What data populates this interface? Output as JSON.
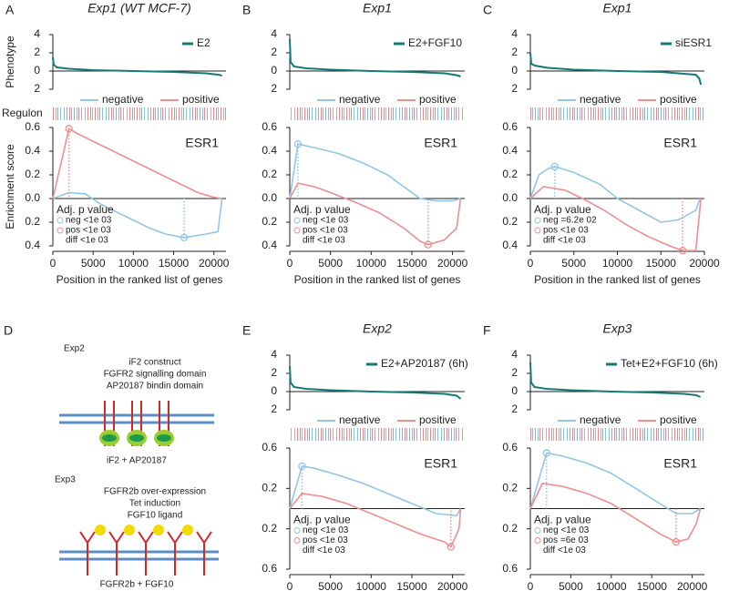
{
  "chart_data": [
    {
      "type": "line",
      "panel_label": "A",
      "title": "Exp1 (WT MCF-7)",
      "ylabel": "Enrichment score",
      "xlabel": "Position in the ranked list of genes",
      "regulon_label": "Regulon",
      "signature": "ESR1",
      "phenotype": {
        "label": "Phenotype",
        "legend": "E2",
        "color": "#137a78",
        "ylim": [
          -2,
          4
        ],
        "yticks": [
          4,
          2,
          0,
          {
            "value": -2,
            "label": "2"
          }
        ],
        "x": [
          0,
          100,
          500,
          2000,
          5000,
          10000,
          15000,
          19000,
          20500,
          21000
        ],
        "values": [
          1.5,
          0.7,
          0.4,
          0.25,
          0.1,
          0,
          -0.1,
          -0.25,
          -0.4,
          -0.5
        ]
      },
      "xlim": [
        0,
        21500
      ],
      "xticks": [
        0,
        5000,
        10000,
        15000,
        20000
      ],
      "ylim": [
        -0.4,
        0.6
      ],
      "yticks": [
        0.6,
        0.4,
        0.2,
        {
          "value": 0,
          "label": "0.0"
        },
        {
          "value": -0.2,
          "label": "0.2"
        },
        {
          "value": -0.4,
          "label": "0.4"
        }
      ],
      "series": [
        {
          "name": "negative",
          "color": "#93c6e6",
          "x": [
            0,
            2000,
            4000,
            6000,
            9000,
            12000,
            14000,
            16300,
            19000,
            20500,
            21000
          ],
          "values": [
            0,
            0.05,
            0.04,
            -0.05,
            -0.15,
            -0.25,
            -0.3,
            -0.33,
            -0.3,
            -0.28,
            0
          ]
        },
        {
          "name": "positive",
          "color": "#ef8f8f",
          "x": [
            0,
            2000,
            3000,
            6000,
            9000,
            12000,
            15000,
            18000,
            20000,
            21000
          ],
          "values": [
            0,
            0.59,
            0.55,
            0.45,
            0.35,
            0.25,
            0.15,
            0.05,
            0.01,
            0
          ]
        }
      ],
      "annotation": {
        "title": "Adj. p  value",
        "lines": [
          "neg <1e 03",
          "pos <1e 03",
          "diff <1e 03"
        ]
      }
    },
    {
      "type": "line",
      "panel_label": "B",
      "title": "Exp1",
      "signature": "ESR1",
      "xlabel": "Position in the ranked list of genes",
      "phenotype": {
        "legend": "E2+FGF10",
        "color": "#137a78",
        "ylim": [
          -2,
          4
        ],
        "yticks": [
          4,
          2,
          0,
          {
            "value": -2,
            "label": "2"
          }
        ],
        "x": [
          0,
          100,
          500,
          2000,
          5000,
          10000,
          15000,
          19000,
          20500,
          21000
        ],
        "values": [
          3.5,
          1.0,
          0.5,
          0.3,
          0.15,
          0,
          -0.1,
          -0.25,
          -0.45,
          -0.6
        ]
      },
      "xlim": [
        0,
        21500
      ],
      "xticks": [
        0,
        5000,
        10000,
        15000,
        20000
      ],
      "ylim": [
        -0.4,
        0.6
      ],
      "yticks": [
        0.6,
        0.4,
        0.2,
        {
          "value": 0,
          "label": "0.0"
        },
        {
          "value": -0.2,
          "label": "0.2"
        },
        {
          "value": -0.4,
          "label": "0.4"
        }
      ],
      "series": [
        {
          "name": "negative",
          "color": "#93c6e6",
          "x": [
            0,
            1000,
            3000,
            6000,
            9000,
            12000,
            14000,
            16000,
            18000,
            20000,
            21000
          ],
          "values": [
            0,
            0.46,
            0.43,
            0.38,
            0.3,
            0.2,
            0.1,
            0,
            -0.02,
            -0.02,
            0
          ]
        },
        {
          "name": "positive",
          "color": "#ef8f8f",
          "x": [
            0,
            1000,
            3000,
            5000,
            8000,
            11000,
            14000,
            16000,
            17000,
            19000,
            20500,
            21000
          ],
          "values": [
            0,
            0.13,
            0.1,
            0.05,
            -0.03,
            -0.12,
            -0.25,
            -0.36,
            -0.39,
            -0.35,
            -0.25,
            0
          ]
        }
      ],
      "annotation": {
        "title": "Adj. p  value",
        "lines": [
          "neg <1e 03",
          "pos <1e 03",
          "diff <1e 03"
        ]
      }
    },
    {
      "type": "line",
      "panel_label": "C",
      "title": "Exp1",
      "signature": "ESR1",
      "xlabel": "Position in the ranked list of genes",
      "phenotype": {
        "legend": "siESR1",
        "color": "#137a78",
        "ylim": [
          -2,
          4
        ],
        "yticks": [
          4,
          2,
          0,
          {
            "value": -2,
            "label": "2"
          }
        ],
        "x": [
          0,
          100,
          500,
          2000,
          5000,
          10000,
          15000,
          19000,
          19400,
          19600
        ],
        "values": [
          2,
          0.8,
          0.6,
          0.35,
          0.15,
          0,
          -0.1,
          -0.4,
          -0.8,
          -1.5
        ]
      },
      "xlim": [
        0,
        20000
      ],
      "xticks": [
        0,
        5000,
        10000,
        15000,
        20000
      ],
      "ylim": [
        -0.4,
        0.6
      ],
      "yticks": [
        0.6,
        0.4,
        0.2,
        {
          "value": 0,
          "label": "0.0"
        },
        {
          "value": -0.2,
          "label": "0.2"
        },
        {
          "value": -0.4,
          "label": "0.4"
        }
      ],
      "series": [
        {
          "name": "negative",
          "color": "#93c6e6",
          "x": [
            0,
            1000,
            2000,
            2800,
            5000,
            8000,
            10000,
            12500,
            15000,
            17000,
            19000,
            19500
          ],
          "values": [
            0,
            0.2,
            0.25,
            0.27,
            0.22,
            0.12,
            0,
            -0.1,
            -0.2,
            -0.18,
            -0.1,
            0
          ]
        },
        {
          "name": "positive",
          "color": "#ef8f8f",
          "x": [
            0,
            1500,
            4000,
            6000,
            8500,
            11000,
            13500,
            16000,
            17500,
            19000,
            19600
          ],
          "values": [
            0,
            0.1,
            0.07,
            0,
            -0.1,
            -0.22,
            -0.32,
            -0.4,
            -0.44,
            -0.44,
            0
          ]
        }
      ],
      "annotation": {
        "title": "Adj. p  value",
        "lines": [
          "neg =6.2e 02",
          "pos <1e 03",
          "diff <1e 03"
        ]
      }
    },
    {
      "type": "line",
      "panel_label": "E",
      "title": "Exp2",
      "signature": "ESR1",
      "phenotype": {
        "legend": "E2+AP20187 (6h)",
        "color": "#137a78",
        "ylim": [
          -2,
          4
        ],
        "yticks": [
          4,
          2,
          0,
          {
            "value": -2,
            "label": "2"
          }
        ],
        "x": [
          0,
          100,
          500,
          2000,
          5000,
          10000,
          15000,
          19000,
          20500,
          21000
        ],
        "values": [
          2.8,
          1.0,
          0.5,
          0.3,
          0.15,
          0,
          -0.1,
          -0.25,
          -0.45,
          -0.8
        ]
      },
      "xlim": [
        0,
        21500
      ],
      "xticks": [
        0,
        5000,
        10000,
        15000,
        20000
      ],
      "ylim": [
        -0.6,
        0.6
      ],
      "yticks": [
        0.6,
        0.2,
        {
          "value": -0.2,
          "label": "0.2"
        },
        {
          "value": -0.6,
          "label": "0.6"
        }
      ],
      "series": [
        {
          "name": "negative",
          "color": "#93c6e6",
          "x": [
            0,
            1500,
            3000,
            6000,
            9000,
            12000,
            15000,
            18000,
            20500,
            21000
          ],
          "values": [
            0,
            0.42,
            0.4,
            0.33,
            0.25,
            0.15,
            0.05,
            -0.05,
            -0.07,
            0
          ]
        },
        {
          "name": "positive",
          "color": "#ef8f8f",
          "x": [
            0,
            1500,
            4000,
            7000,
            10000,
            13000,
            16000,
            19000,
            19800,
            20800,
            21000
          ],
          "values": [
            0,
            0.15,
            0.12,
            0.05,
            -0.05,
            -0.15,
            -0.25,
            -0.33,
            -0.38,
            -0.2,
            0
          ]
        }
      ],
      "annotation": {
        "title": "Adj. p  value",
        "lines": [
          "neg <1e 03",
          "pos <1e 03",
          "diff <1e 03"
        ]
      }
    },
    {
      "type": "line",
      "panel_label": "F",
      "title": "Exp3",
      "signature": "ESR1",
      "phenotype": {
        "legend": "Tet+E2+FGF10 (6h)",
        "color": "#137a78",
        "ylim": [
          -2,
          4
        ],
        "yticks": [
          4,
          2,
          0,
          {
            "value": -2,
            "label": "2"
          }
        ],
        "x": [
          0,
          100,
          500,
          2000,
          5000,
          10000,
          15000,
          19000,
          20500,
          21000
        ],
        "values": [
          3.2,
          1.0,
          0.5,
          0.3,
          0.15,
          0,
          -0.1,
          -0.25,
          -0.4,
          -0.6
        ]
      },
      "xlim": [
        0,
        21500
      ],
      "xticks": [
        0,
        5000,
        10000,
        15000,
        20000
      ],
      "ylim": [
        -0.6,
        0.6
      ],
      "yticks": [
        0.6,
        0.2,
        {
          "value": -0.2,
          "label": "0.2"
        },
        {
          "value": -0.6,
          "label": "0.6"
        }
      ],
      "series": [
        {
          "name": "negative",
          "color": "#93c6e6",
          "x": [
            0,
            2000,
            4000,
            7000,
            10000,
            13000,
            16000,
            18000,
            20000,
            21000
          ],
          "values": [
            0,
            0.55,
            0.52,
            0.45,
            0.35,
            0.2,
            0.05,
            -0.05,
            -0.05,
            0
          ]
        },
        {
          "name": "positive",
          "color": "#ef8f8f",
          "x": [
            0,
            1500,
            4000,
            7000,
            10000,
            13000,
            16000,
            18000,
            19500,
            20500,
            21000
          ],
          "values": [
            0,
            0.25,
            0.22,
            0.15,
            0.05,
            -0.1,
            -0.25,
            -0.33,
            -0.3,
            -0.15,
            0
          ]
        }
      ],
      "annotation": {
        "title": "Adj. p  value",
        "lines": [
          "neg <1e 03",
          "pos =6e 03",
          "diff <1e 03"
        ]
      }
    }
  ],
  "diagram": {
    "panel_label": "D",
    "exp2": {
      "name": "Exp2",
      "lines": [
        "iF2 construct",
        "FGFR2 signalling domain",
        "AP20187 bindin domain"
      ],
      "caption": "iF2 + AP20187"
    },
    "exp3": {
      "name": "Exp3",
      "lines": [
        "FGFR2b over-expression",
        "Tet induction",
        "FGF10 ligand"
      ],
      "caption": "FGFR2b + FGF10"
    }
  }
}
